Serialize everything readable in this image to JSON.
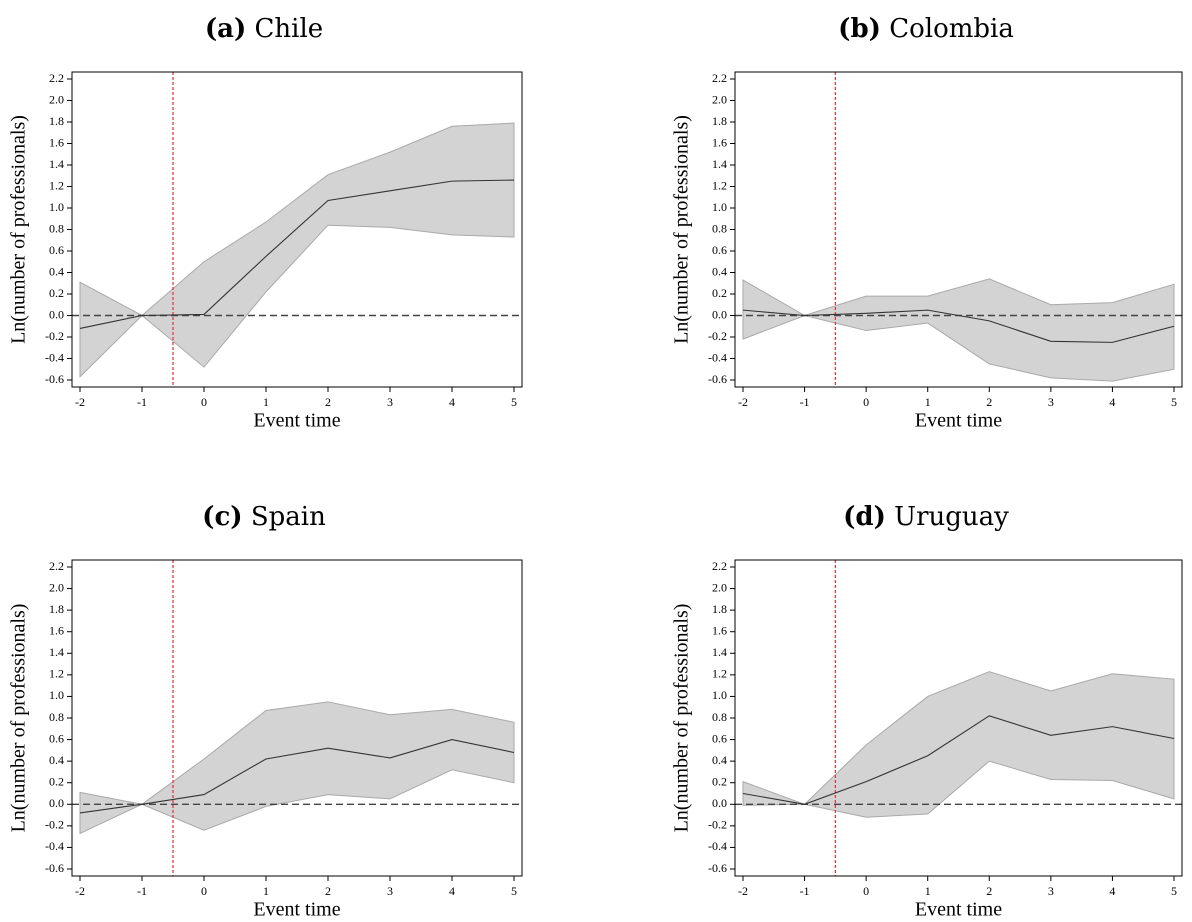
{
  "chart_data": [
    {
      "type": "line",
      "tag": "(a)",
      "title": "Chile",
      "xlabel": "Event time",
      "ylabel": "Ln(number of professionals)",
      "x": [
        -2,
        -1,
        0,
        1,
        2,
        3,
        4,
        5
      ],
      "xlim": [
        -2,
        5
      ],
      "ylim": [
        -0.6,
        2.2
      ],
      "yticks": [
        "-0.6",
        "-0.4",
        "-0.2",
        "0.0",
        "0.2",
        "0.4",
        "0.6",
        "0.8",
        "1.0",
        "1.2",
        "1.4",
        "1.6",
        "1.8",
        "2.0",
        "2.2"
      ],
      "estimate": [
        -0.12,
        0.0,
        0.01,
        0.55,
        1.07,
        1.16,
        1.25,
        1.26
      ],
      "ci_lower": [
        -0.57,
        0.0,
        -0.48,
        0.22,
        0.84,
        0.82,
        0.75,
        0.73
      ],
      "ci_upper": [
        0.31,
        0.0,
        0.5,
        0.87,
        1.31,
        1.52,
        1.76,
        1.79
      ],
      "treatment_line_x": -0.5,
      "zero_line_y": 0,
      "colors": {
        "ci_fill": "#d3d3d3",
        "ci_edge": "#a9a9a9",
        "line": "#333333",
        "treatment": "#e0302f",
        "zero": "#444444"
      }
    },
    {
      "type": "line",
      "tag": "(b)",
      "title": "Colombia",
      "xlabel": "Event time",
      "ylabel": "Ln(number of professionals)",
      "x": [
        -2,
        -1,
        0,
        1,
        2,
        3,
        4,
        5
      ],
      "xlim": [
        -2,
        5
      ],
      "ylim": [
        -0.6,
        2.2
      ],
      "yticks": [
        "-0.6",
        "-0.4",
        "-0.2",
        "0.0",
        "0.2",
        "0.4",
        "0.6",
        "0.8",
        "1.0",
        "1.2",
        "1.4",
        "1.6",
        "1.8",
        "2.0",
        "2.2"
      ],
      "estimate": [
        0.05,
        0.0,
        0.02,
        0.05,
        -0.05,
        -0.24,
        -0.25,
        -0.1
      ],
      "ci_lower": [
        -0.22,
        0.0,
        -0.14,
        -0.07,
        -0.45,
        -0.58,
        -0.61,
        -0.5
      ],
      "ci_upper": [
        0.33,
        0.0,
        0.18,
        0.18,
        0.34,
        0.1,
        0.12,
        0.29
      ],
      "treatment_line_x": -0.5,
      "zero_line_y": 0,
      "colors": {
        "ci_fill": "#d3d3d3",
        "ci_edge": "#a9a9a9",
        "line": "#333333",
        "treatment": "#e0302f",
        "zero": "#444444"
      }
    },
    {
      "type": "line",
      "tag": "(c)",
      "title": "Spain",
      "xlabel": "Event time",
      "ylabel": "Ln(number of professionals)",
      "x": [
        -2,
        -1,
        0,
        1,
        2,
        3,
        4,
        5
      ],
      "xlim": [
        -2,
        5
      ],
      "ylim": [
        -0.6,
        2.2
      ],
      "yticks": [
        "-0.6",
        "-0.4",
        "-0.2",
        "0.0",
        "0.2",
        "0.4",
        "0.6",
        "0.8",
        "1.0",
        "1.2",
        "1.4",
        "1.6",
        "1.8",
        "2.0",
        "2.2"
      ],
      "estimate": [
        -0.08,
        0.0,
        0.09,
        0.42,
        0.52,
        0.43,
        0.6,
        0.48
      ],
      "ci_lower": [
        -0.27,
        0.0,
        -0.24,
        -0.02,
        0.09,
        0.05,
        0.32,
        0.2
      ],
      "ci_upper": [
        0.11,
        0.0,
        0.42,
        0.87,
        0.95,
        0.83,
        0.88,
        0.76
      ],
      "treatment_line_x": -0.5,
      "zero_line_y": 0,
      "colors": {
        "ci_fill": "#d3d3d3",
        "ci_edge": "#a9a9a9",
        "line": "#333333",
        "treatment": "#e0302f",
        "zero": "#444444"
      }
    },
    {
      "type": "line",
      "tag": "(d)",
      "title": "Uruguay",
      "xlabel": "Event time",
      "ylabel": "Ln(number of professionals)",
      "x": [
        -2,
        -1,
        0,
        1,
        2,
        3,
        4,
        5
      ],
      "xlim": [
        -2,
        5
      ],
      "ylim": [
        -0.6,
        2.2
      ],
      "yticks": [
        "-0.6",
        "-0.4",
        "-0.2",
        "0.0",
        "0.2",
        "0.4",
        "0.6",
        "0.8",
        "1.0",
        "1.2",
        "1.4",
        "1.6",
        "1.8",
        "2.0",
        "2.2"
      ],
      "estimate": [
        0.1,
        0.0,
        0.21,
        0.45,
        0.82,
        0.64,
        0.72,
        0.61
      ],
      "ci_lower": [
        -0.01,
        0.0,
        -0.12,
        -0.09,
        0.4,
        0.23,
        0.22,
        0.05
      ],
      "ci_upper": [
        0.21,
        0.0,
        0.55,
        1.0,
        1.23,
        1.05,
        1.21,
        1.16
      ],
      "treatment_line_x": -0.5,
      "zero_line_y": 0,
      "colors": {
        "ci_fill": "#d3d3d3",
        "ci_edge": "#a9a9a9",
        "line": "#333333",
        "treatment": "#e0302f",
        "zero": "#444444"
      }
    }
  ]
}
